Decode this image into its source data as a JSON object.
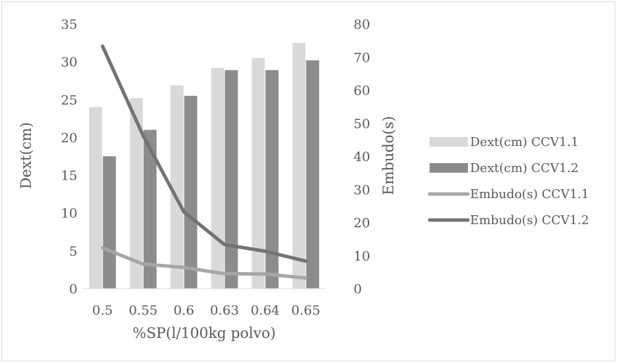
{
  "chart_data": {
    "type": "bar",
    "categories": [
      "0.5",
      "0.55",
      "0.6",
      "0.63",
      "0.64",
      "0.65"
    ],
    "series": [
      {
        "name": "Dext(cm) CCV1.1",
        "type": "bar",
        "axis": "left",
        "color": "#d9d9d9",
        "values": [
          24.0,
          25.2,
          26.9,
          29.2,
          30.5,
          32.5
        ]
      },
      {
        "name": "Dext(cm) CCV1.2",
        "type": "bar",
        "axis": "left",
        "color": "#8c8c8c",
        "values": [
          17.5,
          21.0,
          25.5,
          28.9,
          28.9,
          30.2
        ]
      },
      {
        "name": "Embudo(s) CCV1.1",
        "type": "line",
        "axis": "right",
        "color": "#a6a6a6",
        "values": [
          12.3,
          7.4,
          6.4,
          4.5,
          4.4,
          3.2
        ]
      },
      {
        "name": "Embudo(s) CCV1.2",
        "type": "line",
        "axis": "right",
        "color": "#737373",
        "values": [
          73.3,
          46.2,
          23.2,
          13.3,
          11.3,
          8.3
        ]
      }
    ],
    "xlabel": "%SP(l/100kg polvo)",
    "ylabel": "Dext(cm)",
    "y2label": "Embudo(s)",
    "ylim": [
      0,
      35
    ],
    "y2lim": [
      0,
      80
    ],
    "yticks": [
      "0",
      "5",
      "10",
      "15",
      "20",
      "25",
      "30",
      "35"
    ],
    "y2ticks": [
      "0",
      "10",
      "20",
      "30",
      "40",
      "50",
      "60",
      "70",
      "80"
    ],
    "grid": false,
    "legend": "right"
  }
}
